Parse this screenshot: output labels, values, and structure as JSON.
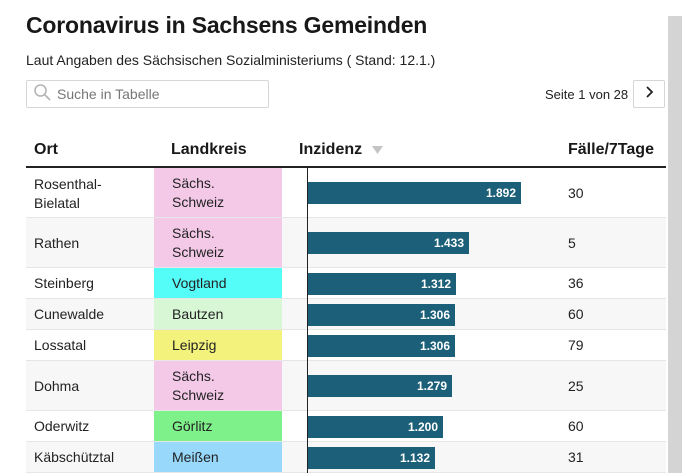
{
  "header": {
    "title": "Coronavirus in Sachsens Gemeinden",
    "subtitle": "Laut Angaben des Sächsischen Sozialministeriums ( Stand: 12.1.)"
  },
  "search": {
    "placeholder": "Suche in Tabelle",
    "value": ""
  },
  "pagination": {
    "label": "Seite 1 von 28"
  },
  "table": {
    "columns": [
      "Ort",
      "Landkreis",
      "Inzidenz",
      "Fälle/7Tage"
    ],
    "sort_column": "Inzidenz",
    "sort_direction": "descending",
    "max_incidence": 1892,
    "rows": [
      {
        "ort": "Rosenthal-Bielatal",
        "landkreis": "Sächs. Schweiz",
        "kreis_color": "#f4c9e8",
        "inzidenz": 1892,
        "inzidenz_label": "1.892",
        "faelle": "30"
      },
      {
        "ort": "Rathen",
        "landkreis": "Sächs. Schweiz",
        "kreis_color": "#f4c9e8",
        "inzidenz": 1433,
        "inzidenz_label": "1.433",
        "faelle": "5"
      },
      {
        "ort": "Steinberg",
        "landkreis": "Vogtland",
        "kreis_color": "#55fdf9",
        "inzidenz": 1312,
        "inzidenz_label": "1.312",
        "faelle": "36"
      },
      {
        "ort": "Cunewalde",
        "landkreis": "Bautzen",
        "kreis_color": "#d7f7d5",
        "inzidenz": 1306,
        "inzidenz_label": "1.306",
        "faelle": "60"
      },
      {
        "ort": "Lossatal",
        "landkreis": "Leipzig",
        "kreis_color": "#f2f27c",
        "inzidenz": 1306,
        "inzidenz_label": "1.306",
        "faelle": "79"
      },
      {
        "ort": "Dohma",
        "landkreis": "Sächs. Schweiz",
        "kreis_color": "#f4c9e8",
        "inzidenz": 1279,
        "inzidenz_label": "1.279",
        "faelle": "25"
      },
      {
        "ort": "Oderwitz",
        "landkreis": "Görlitz",
        "kreis_color": "#7ef18a",
        "inzidenz": 1200,
        "inzidenz_label": "1.200",
        "faelle": "60"
      },
      {
        "ort": "Käbschütztal",
        "landkreis": "Meißen",
        "kreis_color": "#97d8fb",
        "inzidenz": 1132,
        "inzidenz_label": "1.132",
        "faelle": "31"
      }
    ]
  },
  "colors": {
    "bar": "#1c5f78",
    "header_rule": "#222222"
  },
  "icons": {
    "search": "search-icon",
    "next": "chevron-right-icon",
    "sort": "sort-descending-icon"
  }
}
